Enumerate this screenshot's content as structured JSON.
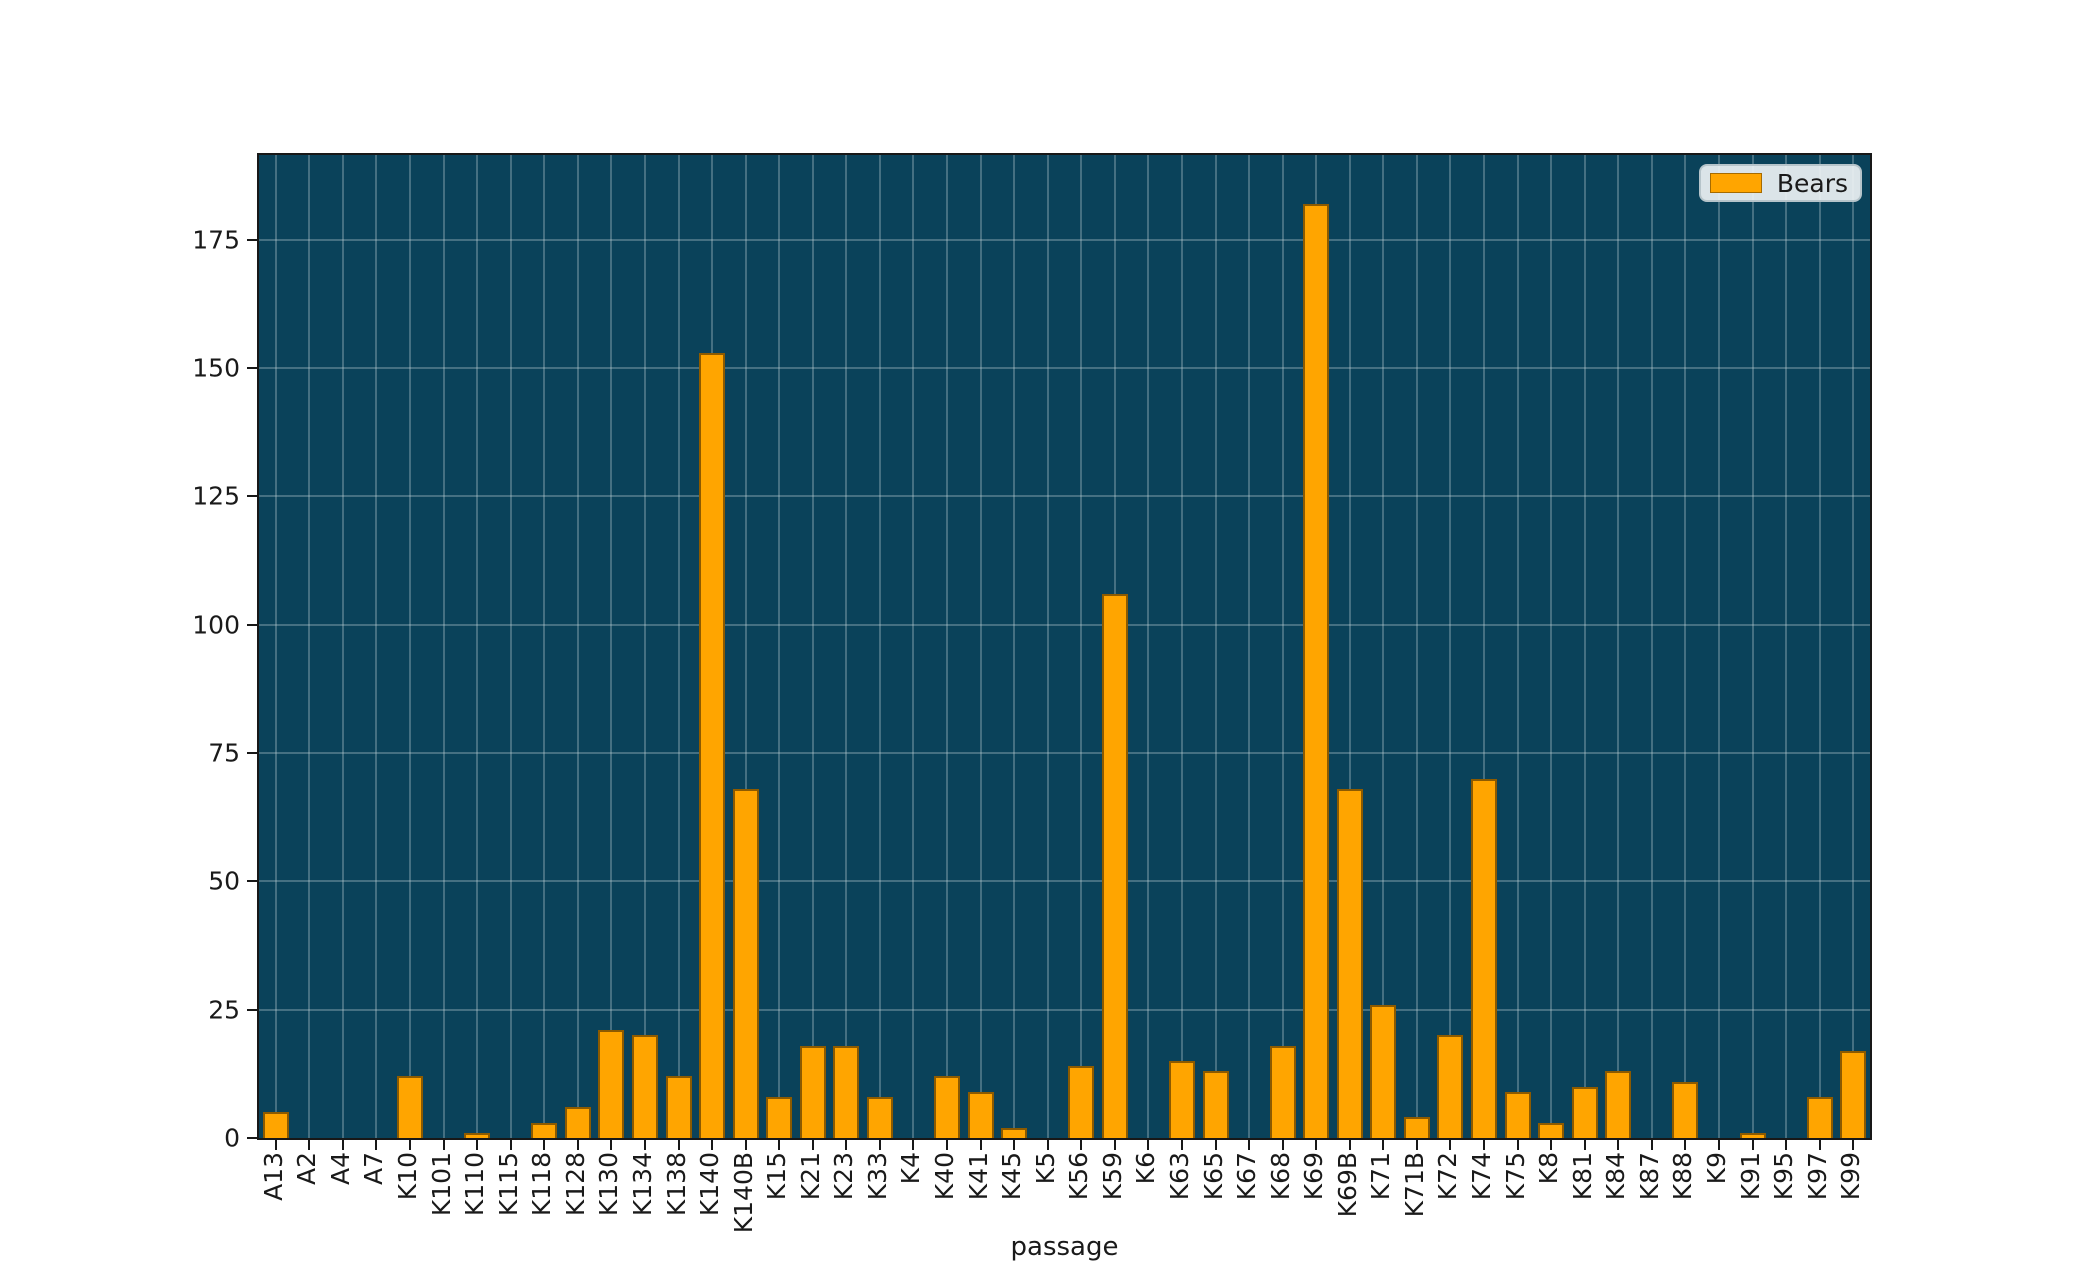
{
  "legend": {
    "label": "Bears",
    "swatch_color": "#FFA500"
  },
  "axes": {
    "xlabel": "passage",
    "background": "#0A425A",
    "bar_color": "#FFA500",
    "spine_color": "#181818"
  },
  "chart_data": {
    "type": "bar",
    "title": "",
    "xlabel": "passage",
    "ylabel": "",
    "legend_position": "upper right",
    "grid": true,
    "categories": [
      "A13",
      "A2",
      "A4",
      "A7",
      "K10",
      "K101",
      "K110",
      "K115",
      "K118",
      "K128",
      "K130",
      "K134",
      "K138",
      "K140",
      "K140B",
      "K15",
      "K21",
      "K23",
      "K33",
      "K4",
      "K40",
      "K41",
      "K45",
      "K5",
      "K56",
      "K59",
      "K6",
      "K63",
      "K65",
      "K67",
      "K68",
      "K69",
      "K69B",
      "K71",
      "K71B",
      "K72",
      "K74",
      "K75",
      "K8",
      "K81",
      "K84",
      "K87",
      "K88",
      "K9",
      "K91",
      "K95",
      "K97",
      "K99"
    ],
    "series": [
      {
        "name": "Bears",
        "color": "#FFA500",
        "values": [
          5,
          0,
          0,
          0,
          12,
          0,
          1,
          0,
          3,
          6,
          21,
          20,
          12,
          153,
          68,
          8,
          18,
          18,
          8,
          0,
          12,
          9,
          2,
          0,
          14,
          106,
          0,
          15,
          13,
          0,
          18,
          182,
          68,
          26,
          4,
          20,
          70,
          9,
          3,
          10,
          13,
          0,
          11,
          0,
          1,
          0,
          8,
          17
        ]
      }
    ],
    "yticks": [
      0,
      25,
      50,
      75,
      100,
      125,
      150,
      175
    ],
    "ylim": [
      0,
      191.5
    ]
  }
}
